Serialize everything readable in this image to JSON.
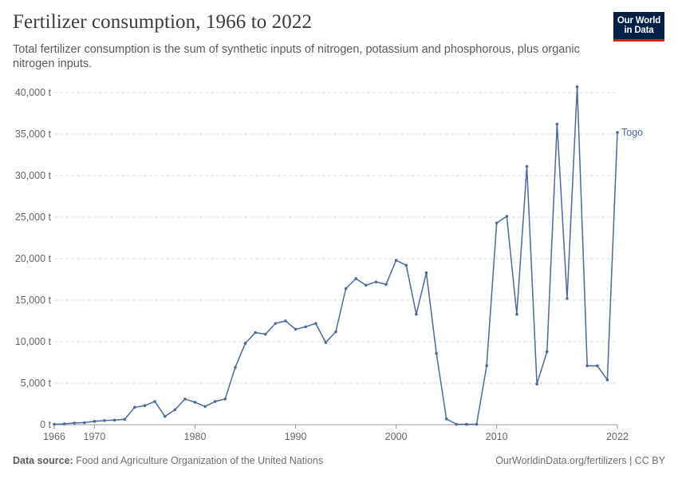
{
  "header": {
    "title": "Fertilizer consumption, 1966 to 2022",
    "subtitle": "Total fertilizer consumption is the sum of synthetic inputs of nitrogen, potassium and phosphorous, plus organic nitrogen inputs.",
    "logo_line1": "Our World",
    "logo_line2": "in Data"
  },
  "footer": {
    "source_label": "Data source:",
    "source_text": "Food and Agriculture Organization of the United Nations",
    "license": "OurWorldinData.org/fertilizers | CC BY"
  },
  "colors": {
    "series": "#4c6a9c",
    "grid": "#dddddd",
    "axis": "#666666"
  },
  "chart_data": {
    "type": "line",
    "title": "Fertilizer consumption, 1966 to 2022",
    "xlabel": "",
    "ylabel": "",
    "xlim": [
      1966,
      2022
    ],
    "ylim": [
      0,
      40000
    ],
    "yticks": [
      0,
      5000,
      10000,
      15000,
      20000,
      25000,
      30000,
      35000,
      40000
    ],
    "ytick_labels": [
      "0 t",
      "5,000 t",
      "10,000 t",
      "15,000 t",
      "20,000 t",
      "25,000 t",
      "30,000 t",
      "35,000 t",
      "40,000 t"
    ],
    "xticks": [
      1966,
      1970,
      1980,
      1990,
      2000,
      2010,
      2022
    ],
    "xtick_labels": [
      "1966",
      "1970",
      "1980",
      "1990",
      "2000",
      "2010",
      "2022"
    ],
    "grid": true,
    "series": [
      {
        "name": "Togo",
        "x": [
          1966,
          1967,
          1968,
          1969,
          1970,
          1971,
          1972,
          1973,
          1974,
          1975,
          1976,
          1977,
          1978,
          1979,
          1980,
          1981,
          1982,
          1983,
          1984,
          1985,
          1986,
          1987,
          1988,
          1989,
          1990,
          1991,
          1992,
          1993,
          1994,
          1995,
          1996,
          1997,
          1998,
          1999,
          2000,
          2001,
          2002,
          2003,
          2004,
          2005,
          2006,
          2007,
          2008,
          2009,
          2010,
          2011,
          2012,
          2013,
          2014,
          2015,
          2016,
          2017,
          2018,
          2019,
          2020,
          2021,
          2022
        ],
        "values": [
          50,
          100,
          200,
          250,
          400,
          500,
          550,
          650,
          2100,
          2300,
          2800,
          1000,
          1800,
          3100,
          2700,
          2200,
          2800,
          3100,
          6900,
          9800,
          11100,
          10900,
          12200,
          12500,
          11500,
          11800,
          12200,
          9900,
          11200,
          16400,
          17600,
          16800,
          17200,
          16900,
          19800,
          19200,
          13300,
          18300,
          8600,
          700,
          50,
          50,
          50,
          7100,
          24300,
          25100,
          13300,
          31100,
          4900,
          8800,
          36200,
          15200,
          40700,
          7100,
          7100,
          5400,
          35200
        ]
      }
    ]
  }
}
